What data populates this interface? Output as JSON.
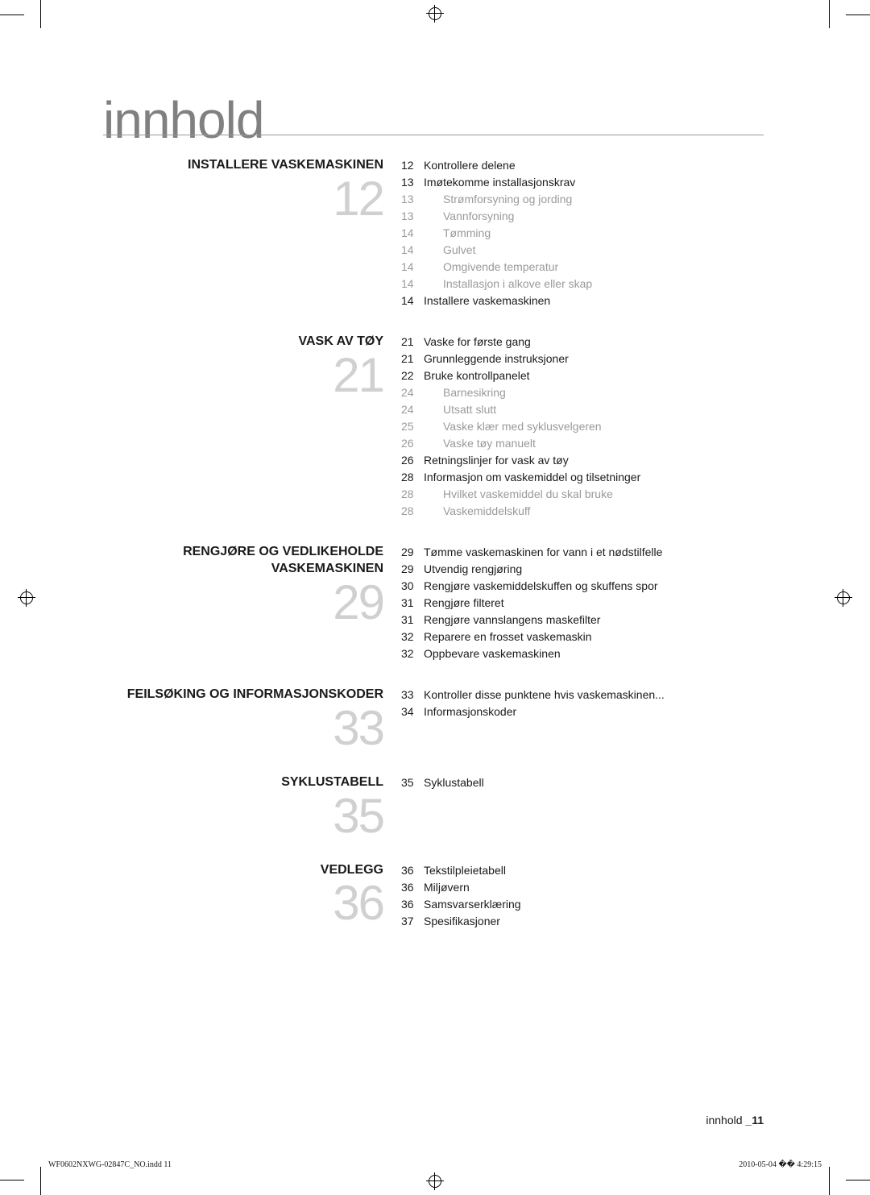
{
  "page_title": "innhold",
  "colors": {
    "title_gray": "#808080",
    "big_num_gray": "#d0d0d0",
    "sub_gray": "#9a9a9a",
    "text": "#1a1a1a",
    "rule": "#999999",
    "background": "#ffffff"
  },
  "typography": {
    "title_fontsize": 64,
    "title_weight": 300,
    "section_title_fontsize": 16,
    "section_title_weight": "bold",
    "big_num_fontsize": 60,
    "big_num_weight": 300,
    "toc_fontsize": 14,
    "footer_fontsize": 10
  },
  "sections": [
    {
      "title": "INSTALLERE VASKEMASKINEN",
      "big_num": "12",
      "items": [
        {
          "page": "12",
          "text": "Kontrollere delene",
          "sub": false
        },
        {
          "page": "13",
          "text": "Imøtekomme installasjonskrav",
          "sub": false
        },
        {
          "page": "13",
          "text": "Strømforsyning og jording",
          "sub": true
        },
        {
          "page": "13",
          "text": "Vannforsyning",
          "sub": true
        },
        {
          "page": "14",
          "text": "Tømming",
          "sub": true
        },
        {
          "page": "14",
          "text": "Gulvet",
          "sub": true
        },
        {
          "page": "14",
          "text": "Omgivende temperatur",
          "sub": true
        },
        {
          "page": "14",
          "text": "Installasjon i alkove eller skap",
          "sub": true
        },
        {
          "page": "14",
          "text": "Installere vaskemaskinen",
          "sub": false
        }
      ]
    },
    {
      "title": "VASK AV TØY",
      "big_num": "21",
      "items": [
        {
          "page": "21",
          "text": "Vaske for første gang",
          "sub": false
        },
        {
          "page": "21",
          "text": "Grunnleggende instruksjoner",
          "sub": false
        },
        {
          "page": "22",
          "text": "Bruke kontrollpanelet",
          "sub": false
        },
        {
          "page": "24",
          "text": "Barnesikring",
          "sub": true
        },
        {
          "page": "24",
          "text": "Utsatt slutt",
          "sub": true
        },
        {
          "page": "25",
          "text": "Vaske klær med syklusvelgeren",
          "sub": true
        },
        {
          "page": "26",
          "text": "Vaske tøy manuelt",
          "sub": true
        },
        {
          "page": "26",
          "text": "Retningslinjer for vask av tøy",
          "sub": false
        },
        {
          "page": "28",
          "text": "Informasjon om vaskemiddel og tilsetninger",
          "sub": false
        },
        {
          "page": "28",
          "text": "Hvilket vaskemiddel du skal bruke",
          "sub": true
        },
        {
          "page": "28",
          "text": "Vaskemiddelskuff",
          "sub": true
        }
      ]
    },
    {
      "title": "RENGJØRE OG VEDLIKEHOLDE VASKEMASKINEN",
      "big_num": "29",
      "items": [
        {
          "page": "29",
          "text": "Tømme vaskemaskinen for vann i et nødstilfelle",
          "sub": false
        },
        {
          "page": "29",
          "text": "Utvendig rengjøring",
          "sub": false
        },
        {
          "page": "30",
          "text": "Rengjøre vaskemiddelskuffen og skuffens spor",
          "sub": false
        },
        {
          "page": "31",
          "text": "Rengjøre filteret",
          "sub": false
        },
        {
          "page": "31",
          "text": "Rengjøre vannslangens maskefilter",
          "sub": false
        },
        {
          "page": "32",
          "text": "Reparere en frosset vaskemaskin",
          "sub": false
        },
        {
          "page": "32",
          "text": "Oppbevare vaskemaskinen",
          "sub": false
        }
      ]
    },
    {
      "title": "FEILSØKING OG INFORMASJONSKODER",
      "big_num": "33",
      "items": [
        {
          "page": "33",
          "text": "Kontroller disse punktene hvis vaskemaskinen...",
          "sub": false
        },
        {
          "page": "34",
          "text": "Informasjonskoder",
          "sub": false
        }
      ]
    },
    {
      "title": "SYKLUSTABELL",
      "big_num": "35",
      "items": [
        {
          "page": "35",
          "text": "Syklustabell",
          "sub": false
        }
      ]
    },
    {
      "title": "VEDLEGG",
      "big_num": "36",
      "items": [
        {
          "page": "36",
          "text": "Tekstilpleietabell",
          "sub": false
        },
        {
          "page": "36",
          "text": "Miljøvern",
          "sub": false
        },
        {
          "page": "36",
          "text": "Samsvarserklæring",
          "sub": false
        },
        {
          "page": "37",
          "text": "Spesifikasjoner",
          "sub": false
        }
      ]
    }
  ],
  "footer": {
    "label": "innhold",
    "page_num": "_11"
  },
  "print_footer": {
    "left": "WF0602NXWG-02847C_NO.indd   11",
    "right": "2010-05-04   �� 4:29:15"
  }
}
